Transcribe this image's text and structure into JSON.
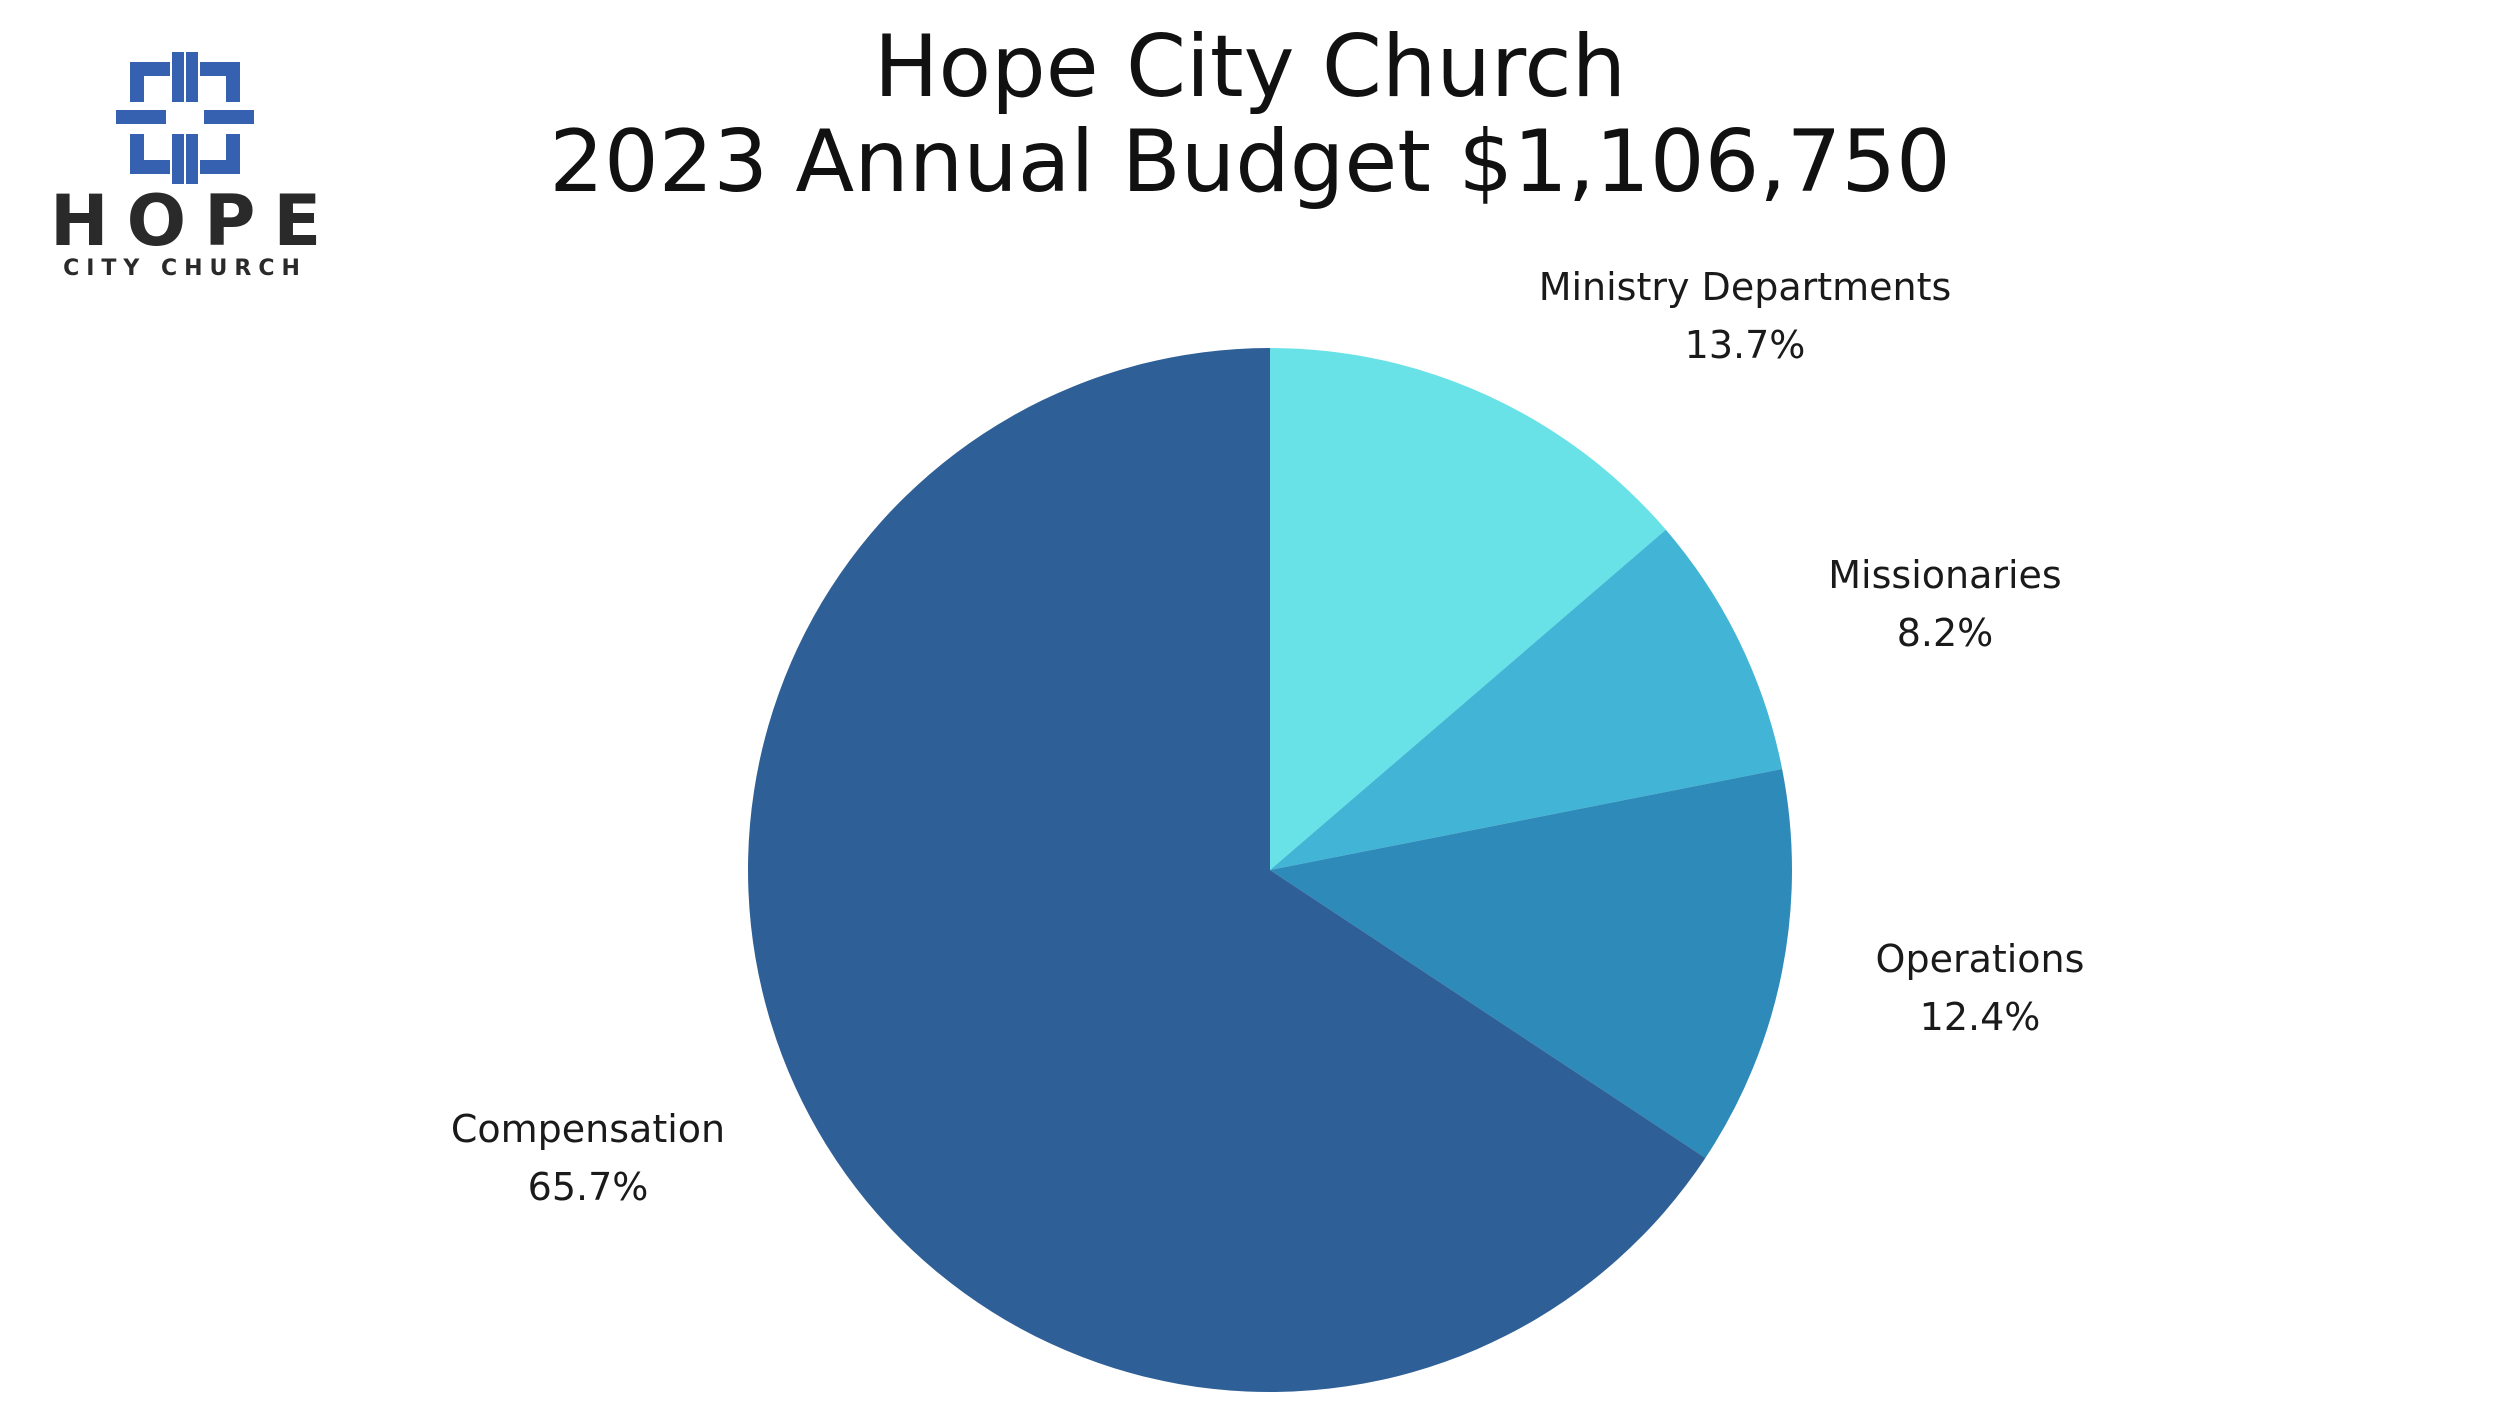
{
  "logo": {
    "word": "HOPE",
    "subword": "CITY CHURCH",
    "icon": "cross-frame-icon",
    "color": "#3561b0"
  },
  "title": {
    "line1": "Hope City Church",
    "line2": "2023 Annual Budget $1,106,750"
  },
  "chart_data": {
    "type": "pie",
    "title": "Hope City Church 2023 Annual Budget $1,106,750",
    "start_angle_deg": 0,
    "direction": "clockwise",
    "slices": [
      {
        "label": "Ministry Departments",
        "value": 13.7,
        "value_label": "13.7%",
        "color": "#68e2e7"
      },
      {
        "label": "Missionaries",
        "value": 8.2,
        "value_label": "8.2%",
        "color": "#42b5d6"
      },
      {
        "label": "Operations",
        "value": 12.4,
        "value_label": "12.4%",
        "color": "#2e8ab9"
      },
      {
        "label": "Compensation",
        "value": 65.7,
        "value_label": "65.7%",
        "color": "#2e5f96"
      }
    ]
  }
}
